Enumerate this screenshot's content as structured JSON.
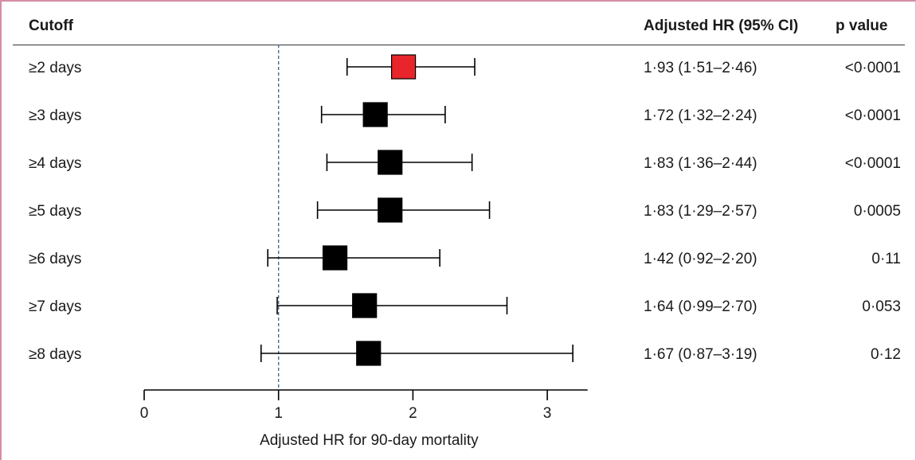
{
  "table": {
    "header_cutoff": "Cutoff",
    "header_hr": "Adjusted HR (95% CI)",
    "header_p": "p value"
  },
  "chart_data": {
    "type": "forest",
    "xlabel": "Adjusted HR for 90-day mortality",
    "xlim": [
      0,
      3.3
    ],
    "xticks": [
      "0",
      "1",
      "2",
      "3"
    ],
    "reference_line": 1,
    "rows": [
      {
        "label": "≥2 days",
        "hr": 1.93,
        "lo": 1.51,
        "hi": 2.46,
        "hr_text": "1·93 (1·51–2·46)",
        "p": "<0·0001",
        "highlight": true
      },
      {
        "label": "≥3 days",
        "hr": 1.72,
        "lo": 1.32,
        "hi": 2.24,
        "hr_text": "1·72 (1·32–2·24)",
        "p": "<0·0001",
        "highlight": false
      },
      {
        "label": "≥4 days",
        "hr": 1.83,
        "lo": 1.36,
        "hi": 2.44,
        "hr_text": "1·83 (1·36–2·44)",
        "p": "<0·0001",
        "highlight": false
      },
      {
        "label": "≥5 days",
        "hr": 1.83,
        "lo": 1.29,
        "hi": 2.57,
        "hr_text": "1·83 (1·29–2·57)",
        "p": "0·0005",
        "highlight": false
      },
      {
        "label": "≥6 days",
        "hr": 1.42,
        "lo": 0.92,
        "hi": 2.2,
        "hr_text": "1·42 (0·92–2·20)",
        "p": "0·11",
        "highlight": false
      },
      {
        "label": "≥7 days",
        "hr": 1.64,
        "lo": 0.99,
        "hi": 2.7,
        "hr_text": "1·64 (0·99–2·70)",
        "p": "0·053",
        "highlight": false
      },
      {
        "label": "≥8  days",
        "hr": 1.67,
        "lo": 0.87,
        "hi": 3.19,
        "hr_text": "1·67 (0·87–3·19)",
        "p": "0·12",
        "highlight": false
      }
    ],
    "colors": {
      "highlight": "#e8252a",
      "marker": "#000000",
      "reference_line": "#4a6a86"
    }
  }
}
